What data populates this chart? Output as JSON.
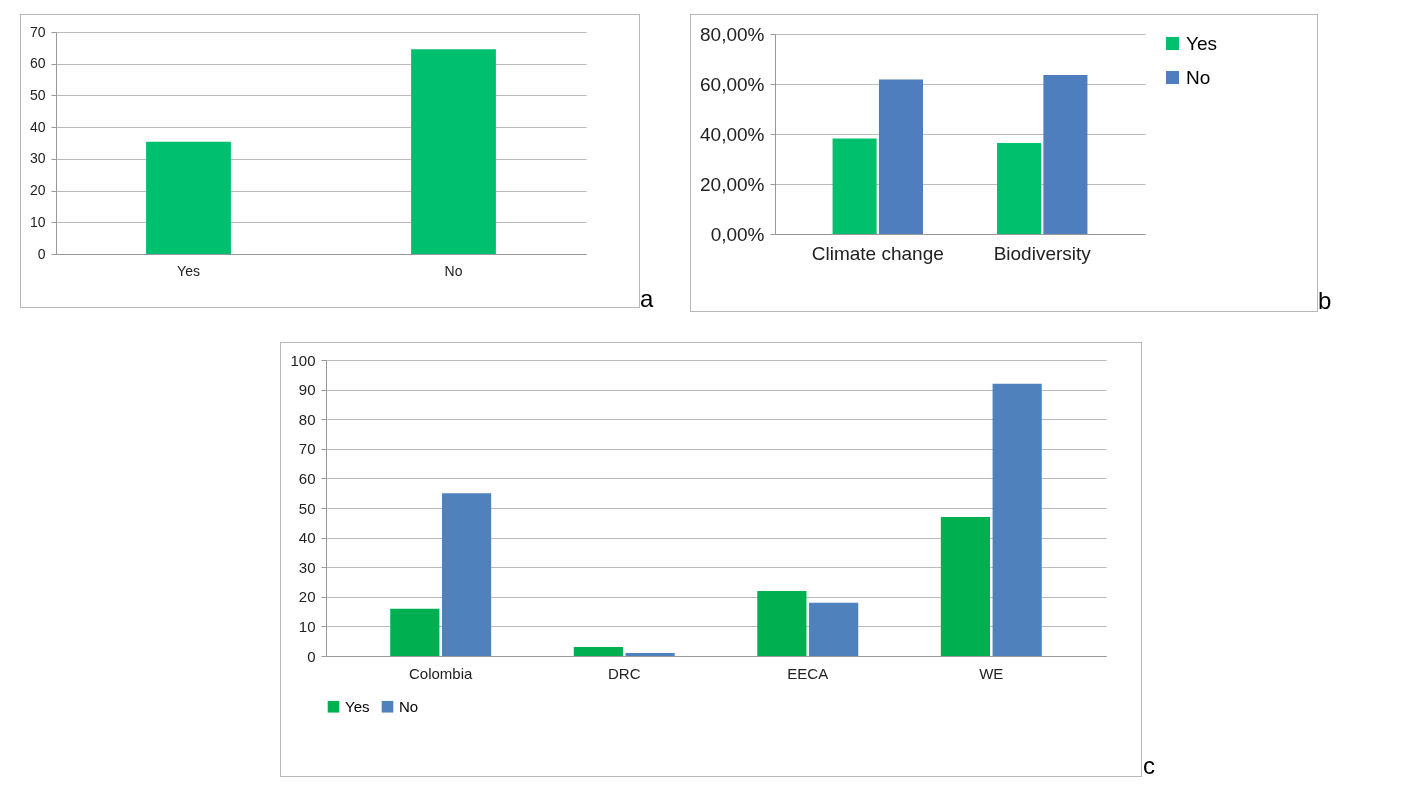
{
  "chart_data": [
    {
      "type": "bar",
      "categories": [
        "Yes",
        "No"
      ],
      "values": [
        35.4,
        64.6
      ],
      "color": "#00bf6f",
      "ylim": [
        0,
        70
      ],
      "yticks": [
        0,
        10,
        20,
        30,
        40,
        50,
        60,
        70
      ],
      "grid": "y",
      "annotations": [
        "a"
      ]
    },
    {
      "type": "bar",
      "categories": [
        "Climate change",
        "Biodiversity"
      ],
      "series": [
        {
          "name": "Yes",
          "color": "#00c06e",
          "values": [
            38.2,
            36.4
          ]
        },
        {
          "name": "No",
          "color": "#4f7ebe",
          "values": [
            61.8,
            63.6
          ]
        }
      ],
      "ylim": [
        0,
        80
      ],
      "yticks": [
        {
          "value": 0,
          "label": "0,00%"
        },
        {
          "value": 20,
          "label": "20,00%"
        },
        {
          "value": 40,
          "label": "40,00%"
        },
        {
          "value": 60,
          "label": "60,00%"
        },
        {
          "value": 80,
          "label": "80,00%"
        }
      ],
      "grid": "y",
      "legend": "right",
      "annotations": [
        "b"
      ]
    },
    {
      "type": "bar",
      "categories": [
        "Colombia",
        "DRC",
        "EECA",
        "WE"
      ],
      "series": [
        {
          "name": "Yes",
          "color": "#00b050",
          "values": [
            16,
            3,
            22,
            47
          ]
        },
        {
          "name": "No",
          "color": "#4f81bd",
          "values": [
            55,
            1,
            18,
            92
          ]
        }
      ],
      "ylim": [
        0,
        100
      ],
      "yticks": [
        0,
        10,
        20,
        30,
        40,
        50,
        60,
        70,
        80,
        90,
        100
      ],
      "grid": "y",
      "legend": "bottom",
      "annotations": [
        "c"
      ]
    }
  ]
}
